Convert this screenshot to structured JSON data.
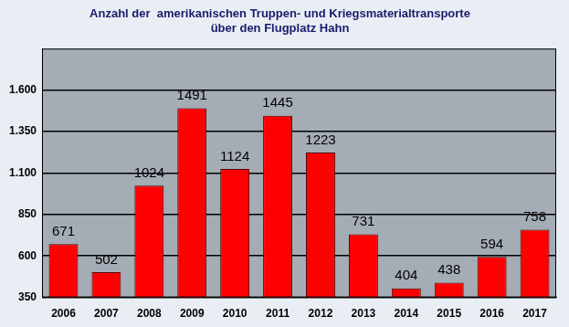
{
  "chart_data": {
    "type": "bar",
    "title": [
      "Anzahl der  amerikanischen Truppen- und Kriegsmaterialtransporte",
      "über den Flugplatz Hahn"
    ],
    "categories": [
      "2006",
      "2007",
      "2008",
      "2009",
      "2010",
      "2011",
      "2012",
      "2013",
      "2014",
      "2015",
      "2016",
      "2017"
    ],
    "values": [
      671,
      502,
      1024,
      1491,
      1124,
      1445,
      1223,
      731,
      404,
      438,
      594,
      758
    ],
    "color": "#ff0000",
    "ylim": [
      350,
      1850
    ],
    "yticks": [
      350,
      600,
      850,
      {
        "value": 1100,
        "label": "1.100"
      },
      {
        "value": 1350,
        "label": "1.350"
      },
      {
        "value": 1600,
        "label": "1.600"
      }
    ],
    "grid": true,
    "data_labels": true
  }
}
